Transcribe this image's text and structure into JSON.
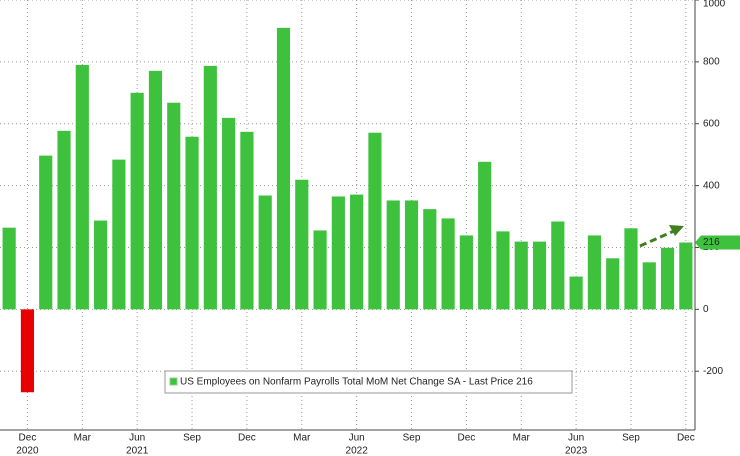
{
  "chart_data": {
    "type": "bar",
    "categories": [
      null,
      "Dec",
      null,
      null,
      "Mar",
      null,
      null,
      "Jun",
      null,
      null,
      "Sep",
      null,
      null,
      "Dec",
      null,
      null,
      "Mar",
      null,
      null,
      "Jun",
      null,
      null,
      "Sep",
      null,
      null,
      "Dec",
      null,
      null,
      "Mar",
      null,
      null,
      "Jun",
      null,
      null,
      "Sep",
      null,
      null,
      "Dec"
    ],
    "year_labels": [
      null,
      "2020",
      null,
      null,
      null,
      null,
      null,
      "2021",
      null,
      null,
      null,
      null,
      null,
      null,
      null,
      null,
      null,
      null,
      null,
      "2022",
      null,
      null,
      null,
      null,
      null,
      null,
      null,
      null,
      null,
      null,
      null,
      "2023",
      null,
      null,
      null,
      null,
      null,
      null
    ],
    "series": [
      {
        "name": "US Employees on Nonfarm Payrolls Total MoM Net Change SA - Last Price 216",
        "color": "#3ec23e",
        "negative_color": "#e80000",
        "values": [
          264,
          -268,
          497,
          577,
          790,
          287,
          484,
          700,
          771,
          668,
          558,
          787,
          619,
          574,
          368,
          910,
          419,
          255,
          365,
          371,
          571,
          352,
          352,
          324,
          294,
          239,
          477,
          252,
          219,
          219,
          284,
          106,
          239,
          165,
          262,
          152,
          199,
          216
        ]
      }
    ],
    "ylim": [
      -390,
      1000
    ],
    "yticks": [
      -200,
      0,
      200,
      400,
      600,
      800,
      1000
    ],
    "grid": true
  }
}
